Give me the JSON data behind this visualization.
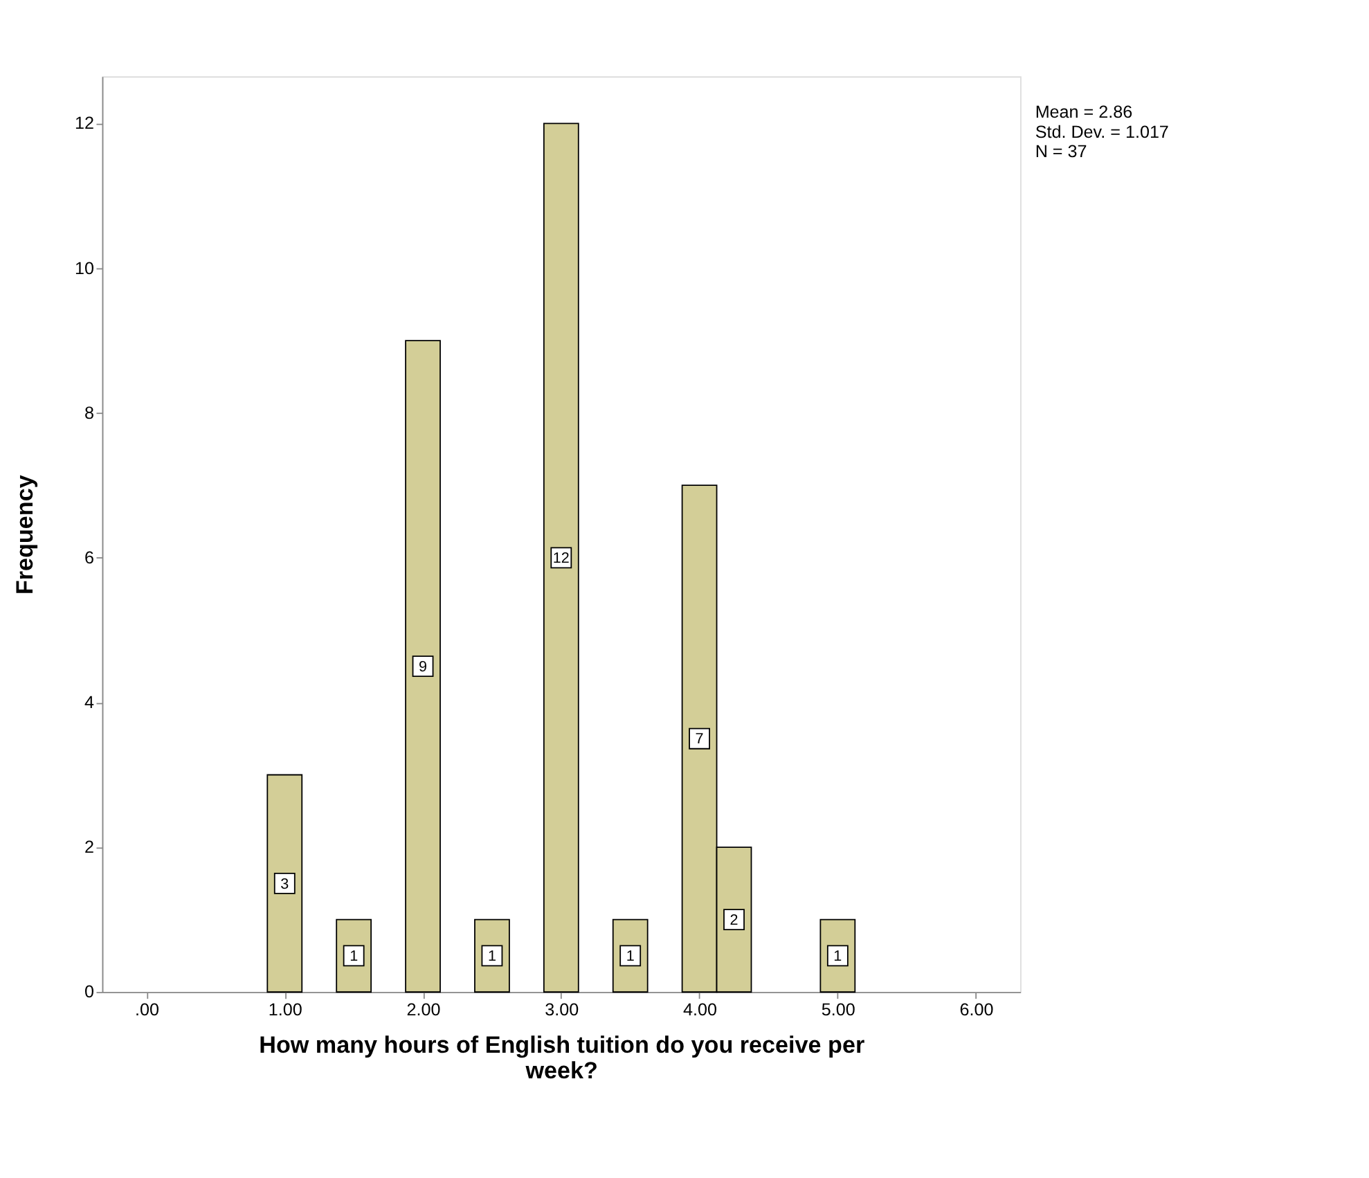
{
  "chart_data": {
    "type": "histogram",
    "xlabel": "How many hours of English tuition do you receive per week?",
    "ylabel": "Frequency",
    "bins": [
      0.875,
      1.125,
      1.375,
      1.625,
      1.875,
      2.125,
      2.375,
      2.625,
      2.875,
      3.125,
      3.375,
      3.625,
      3.875,
      4.125,
      4.375,
      4.625,
      4.875,
      5.125
    ],
    "values": [
      3,
      0,
      1,
      0,
      9,
      0,
      1,
      0,
      12,
      0,
      1,
      0,
      7,
      2,
      0,
      0,
      1
    ],
    "value_labels": [
      "3",
      null,
      "1",
      null,
      "9",
      null,
      "1",
      null,
      "12",
      null,
      "1",
      null,
      "7",
      "2",
      null,
      null,
      "1"
    ],
    "color": "#d3ce97",
    "xlim": [
      -0.32,
      6.32
    ],
    "xticks": [
      {
        "value": 0,
        "label": ".00"
      },
      {
        "value": 1,
        "label": "1.00"
      },
      {
        "value": 2,
        "label": "2.00"
      },
      {
        "value": 3,
        "label": "3.00"
      },
      {
        "value": 4,
        "label": "4.00"
      },
      {
        "value": 5,
        "label": "5.00"
      },
      {
        "value": 6,
        "label": "6.00"
      }
    ],
    "ylim": [
      0,
      12.65
    ],
    "yticks": [
      0,
      2,
      4,
      6,
      8,
      10,
      12
    ],
    "grid": false,
    "annotations": [
      "Mean = 2.86",
      "Std. Dev. = 1.017",
      "N = 37"
    ]
  }
}
